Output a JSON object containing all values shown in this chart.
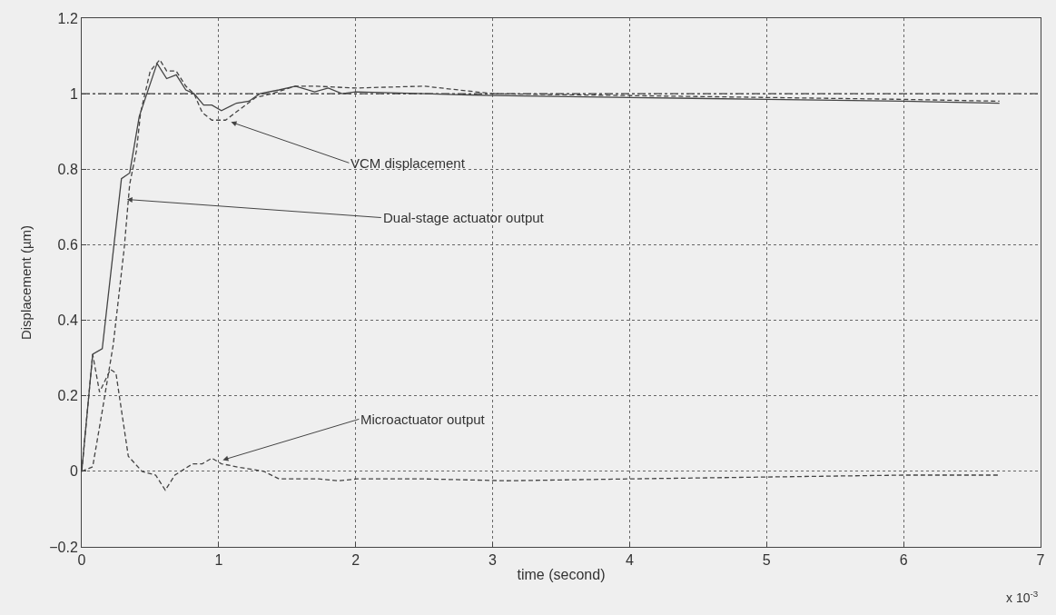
{
  "chart_data": {
    "type": "line",
    "xlabel": "time (second)",
    "ylabel": "Displacement (µm)",
    "xlim": [
      0,
      7
    ],
    "xticks": [
      0,
      1,
      2,
      3,
      4,
      5,
      6,
      7
    ],
    "ylim": [
      -0.2,
      1.2
    ],
    "yticks": [
      -0.2,
      0,
      0.2,
      0.4,
      0.6,
      0.8,
      1,
      1.2
    ],
    "grid": true,
    "series": [
      {
        "color": "#444444",
        "line_style": "solid",
        "x": [
          0,
          0.08,
          0.15,
          0.29,
          0.35,
          0.42,
          0.55,
          0.62,
          0.69,
          0.76,
          0.82,
          0.89,
          0.95,
          1.02,
          1.13,
          1.22,
          1.3,
          1.44,
          1.56,
          1.7,
          1.8,
          1.9,
          2,
          2.5,
          3,
          4,
          5,
          6,
          6.7
        ],
        "values": [
          0,
          0.31,
          0.325,
          0.775,
          0.79,
          0.94,
          1.08,
          1.04,
          1.05,
          1.01,
          1.0,
          0.97,
          0.97,
          0.955,
          0.975,
          0.98,
          1.0,
          1.01,
          1.02,
          1.005,
          1.015,
          1.0,
          1.005,
          1.0,
          0.995,
          0.99,
          0.985,
          0.98,
          0.975
        ]
      },
      {
        "color": "#444444",
        "line_style": "dashed",
        "x": [
          0,
          0.08,
          0.15,
          0.23,
          0.31,
          0.35,
          0.4,
          0.43,
          0.5,
          0.57,
          0.62,
          0.69,
          0.76,
          0.82,
          0.88,
          0.95,
          1.05,
          1.16,
          1.27,
          1.39,
          1.56,
          1.7,
          2,
          2.5,
          3,
          4,
          5,
          6,
          6.7
        ],
        "values": [
          0,
          0.012,
          0.16,
          0.335,
          0.59,
          0.76,
          0.85,
          0.95,
          1.06,
          1.09,
          1.06,
          1.06,
          1.02,
          1.0,
          0.95,
          0.93,
          0.93,
          0.96,
          0.99,
          1.0,
          1.02,
          1.02,
          1.015,
          1.02,
          1.0,
          0.995,
          0.99,
          0.985,
          0.98
        ]
      },
      {
        "color": "#444444",
        "line_style": "dashed",
        "x": [
          0,
          0.08,
          0.13,
          0.21,
          0.25,
          0.34,
          0.44,
          0.54,
          0.61,
          0.68,
          0.81,
          0.88,
          0.95,
          1.02,
          1.16,
          1.33,
          1.44,
          1.6,
          1.73,
          1.87,
          2.01,
          2.5,
          3.1,
          4,
          5,
          6,
          6.7
        ],
        "values": [
          0,
          0.31,
          0.21,
          0.27,
          0.26,
          0.04,
          0.0,
          -0.01,
          -0.05,
          -0.01,
          0.02,
          0.02,
          0.035,
          0.02,
          0.01,
          0.0,
          -0.02,
          -0.02,
          -0.02,
          -0.025,
          -0.02,
          -0.02,
          -0.025,
          -0.02,
          -0.015,
          -0.01,
          -0.01
        ]
      }
    ],
    "ref_lines": [
      {
        "axis": "y",
        "value": 1,
        "line_style": "dashed",
        "color": "#444444"
      }
    ],
    "annotations": [
      {
        "text": "VCM displacement",
        "x": 1.09,
        "y": 0.925
      },
      {
        "text": "Dual-stage actuator output",
        "x": 0.33,
        "y": 0.72
      },
      {
        "text": "Microactuator output",
        "x": 1.03,
        "y": 0.03
      },
      "x 10$^{-3}$"
    ]
  }
}
